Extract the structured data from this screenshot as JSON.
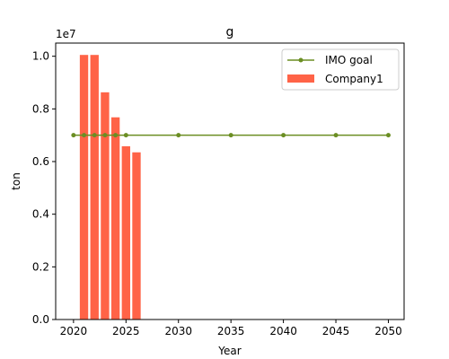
{
  "chart_data": {
    "type": "bar",
    "title": "g",
    "xlabel": "Year",
    "ylabel": "ton",
    "y_offset_label": "1e7",
    "xlim": [
      2018.3,
      2051.5
    ],
    "ylim": [
      0,
      10500000
    ],
    "x_ticks": [
      2020,
      2025,
      2030,
      2035,
      2040,
      2045,
      2050
    ],
    "x_tick_labels": [
      "2020",
      "2025",
      "2030",
      "2035",
      "2040",
      "2045",
      "2050"
    ],
    "y_ticks": [
      0,
      2000000,
      4000000,
      6000000,
      8000000,
      10000000
    ],
    "y_tick_labels": [
      "0.0",
      "0.2",
      "0.4",
      "0.6",
      "0.8",
      "1.0"
    ],
    "grid": false,
    "legend_position": "top-right",
    "series": [
      {
        "name": "IMO goal",
        "kind": "line",
        "marker": "circle",
        "color": "#6b8e23",
        "x": [
          2020,
          2021,
          2022,
          2023,
          2024,
          2025,
          2030,
          2035,
          2040,
          2045,
          2050
        ],
        "y": [
          7000000,
          7000000,
          7000000,
          7000000,
          7000000,
          7000000,
          7000000,
          7000000,
          7000000,
          7000000,
          7000000
        ]
      },
      {
        "name": "Company1",
        "kind": "bar",
        "color": "#ff6347",
        "x": [
          2021,
          2022,
          2023,
          2024,
          2025,
          2026
        ],
        "y": [
          10050000,
          10050000,
          8630000,
          7680000,
          6580000,
          6350000
        ]
      }
    ]
  }
}
